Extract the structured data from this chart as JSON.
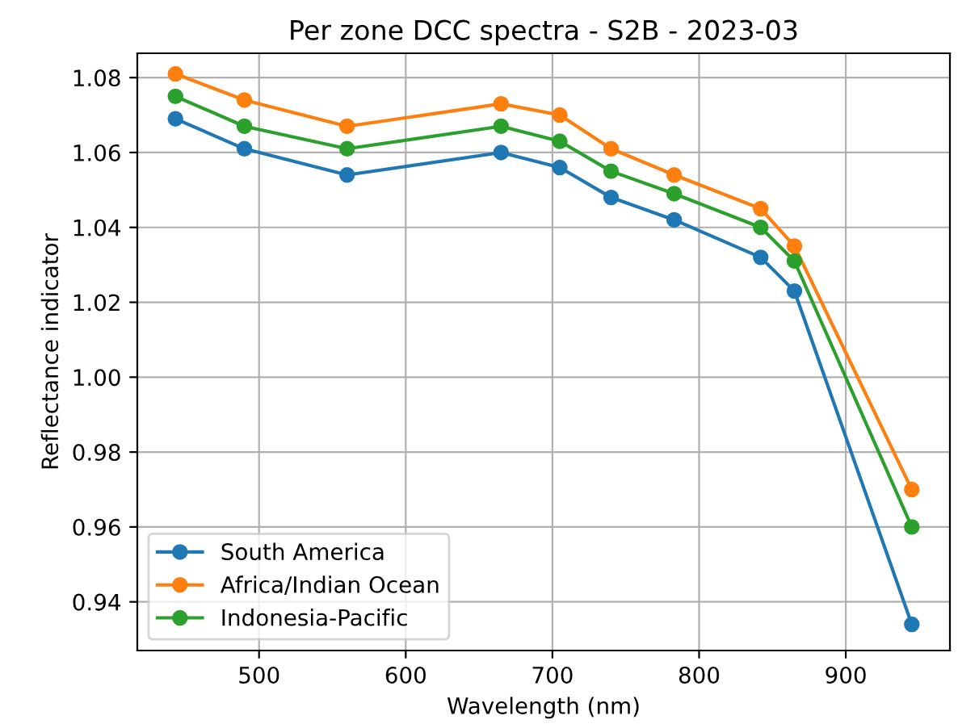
{
  "chart_data": {
    "type": "line",
    "title": "Per zone DCC spectra - S2B - 2023-03",
    "xlabel": "Wavelength (nm)",
    "ylabel": "Reflectance indicator",
    "x": [
      443,
      490,
      560,
      665,
      705,
      740,
      783,
      842,
      865,
      945
    ],
    "series": [
      {
        "name": "South America",
        "color": "#1f77b4",
        "values": [
          1.069,
          1.061,
          1.054,
          1.06,
          1.056,
          1.048,
          1.042,
          1.032,
          1.023,
          0.934
        ]
      },
      {
        "name": "Africa/Indian Ocean",
        "color": "#ff7f0e",
        "values": [
          1.081,
          1.074,
          1.067,
          1.073,
          1.07,
          1.061,
          1.054,
          1.045,
          1.035,
          0.97
        ]
      },
      {
        "name": "Indonesia-Pacific",
        "color": "#2ca02c",
        "values": [
          1.075,
          1.067,
          1.061,
          1.067,
          1.063,
          1.055,
          1.049,
          1.04,
          1.031,
          0.96
        ]
      }
    ],
    "xlim": [
      417,
      971
    ],
    "ylim": [
      0.927,
      1.0865
    ],
    "xticks": [
      500,
      600,
      700,
      800,
      900
    ],
    "yticks": [
      {
        "value": 0.94,
        "label": "0.94"
      },
      {
        "value": 0.96,
        "label": "0.96"
      },
      {
        "value": 0.98,
        "label": "0.98"
      },
      {
        "value": 1.0,
        "label": "1.00"
      },
      {
        "value": 1.02,
        "label": "1.02"
      },
      {
        "value": 1.04,
        "label": "1.04"
      },
      {
        "value": 1.06,
        "label": "1.06"
      },
      {
        "value": 1.08,
        "label": "1.08"
      }
    ],
    "grid": true,
    "legend": "bottom left",
    "marker": "circle",
    "line_style": "solid"
  }
}
